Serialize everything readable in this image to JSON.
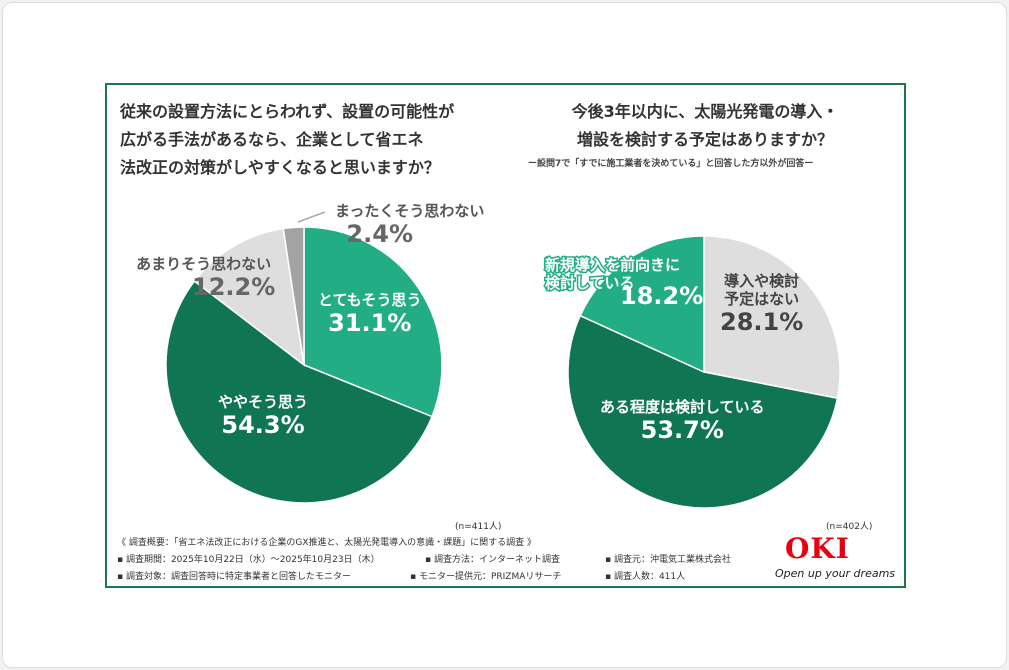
{
  "chart_data": [
    {
      "type": "pie",
      "title": "従来の設置方法にとらわれず、設置の可能性が広がる手法があるなら、企業として省エネ法改正の対策がしやすくなると思いますか？",
      "categories": [
        "とてもそう思う",
        "ややそう思う",
        "あまりそう思わない",
        "まったくそう思わない"
      ],
      "values": [
        31.1,
        54.3,
        12.2,
        2.4
      ],
      "colors": [
        "#22ad84",
        "#0f7552",
        "#dedede",
        "#a3a3a3"
      ],
      "value_labels": [
        "31.1%",
        "54.3%",
        "12.2%",
        "2.4%"
      ],
      "note": "(n=411人)"
    },
    {
      "type": "pie",
      "title": "今後3年以内に、太陽光発電の導入・増設を検討する予定はありますか？",
      "subtitle": "ー設問7で「すでに施工業者を決めている」と回答した方以外が回答ー",
      "categories": [
        "導入や検討予定はない",
        "ある程度は検討している",
        "新規導入を前向きに検討している"
      ],
      "values": [
        28.1,
        53.7,
        18.2
      ],
      "colors": [
        "#dedede",
        "#0f7552",
        "#22ad84"
      ],
      "value_labels": [
        "28.1%",
        "53.7%",
        "18.2%"
      ],
      "note": "(n=402人)"
    }
  ],
  "left_title_lines": [
    "従来の設置方法にとらわれず、設置の可能性が",
    "広がる手法があるなら、企業として省エネ",
    "法改正の対策がしやすくなると思いますか？"
  ],
  "right_title_lines": [
    "今後3年以内に、太陽光発電の導入・",
    "増設を検討する予定はありますか？"
  ],
  "left_labels": {
    "a": "とてもそう思う",
    "b": "ややそう思う",
    "c": "あまりそう思わない",
    "d": "まったくそう思わない"
  },
  "right_labels": {
    "a1": "導入や検討",
    "a2": "予定はない",
    "b": "ある程度は検討している",
    "c1": "新規導入を前向きに",
    "c2": "検討している"
  },
  "footer": {
    "survey": "《 調査概要：「省エネ法改正における企業のGX推進と、太陽光発電導入の意識・課題」に関する調査 》",
    "period": "▪ 調査期間：2025年10月22日（水）〜2025年10月23日（木）",
    "method": "▪ 調査方法：インターネット調査",
    "org": "▪ 調査元：沖電気工業株式会社",
    "target": "▪ 調査対象：調査回答時に特定事業者と回答したモニター",
    "provider": "▪ モニター提供元：PRIZMAリサーチ",
    "count": "▪ 調査人数：411人"
  },
  "logo": {
    "name": "OKI",
    "tagline": "Open up your dreams",
    "color": "#e60012"
  }
}
